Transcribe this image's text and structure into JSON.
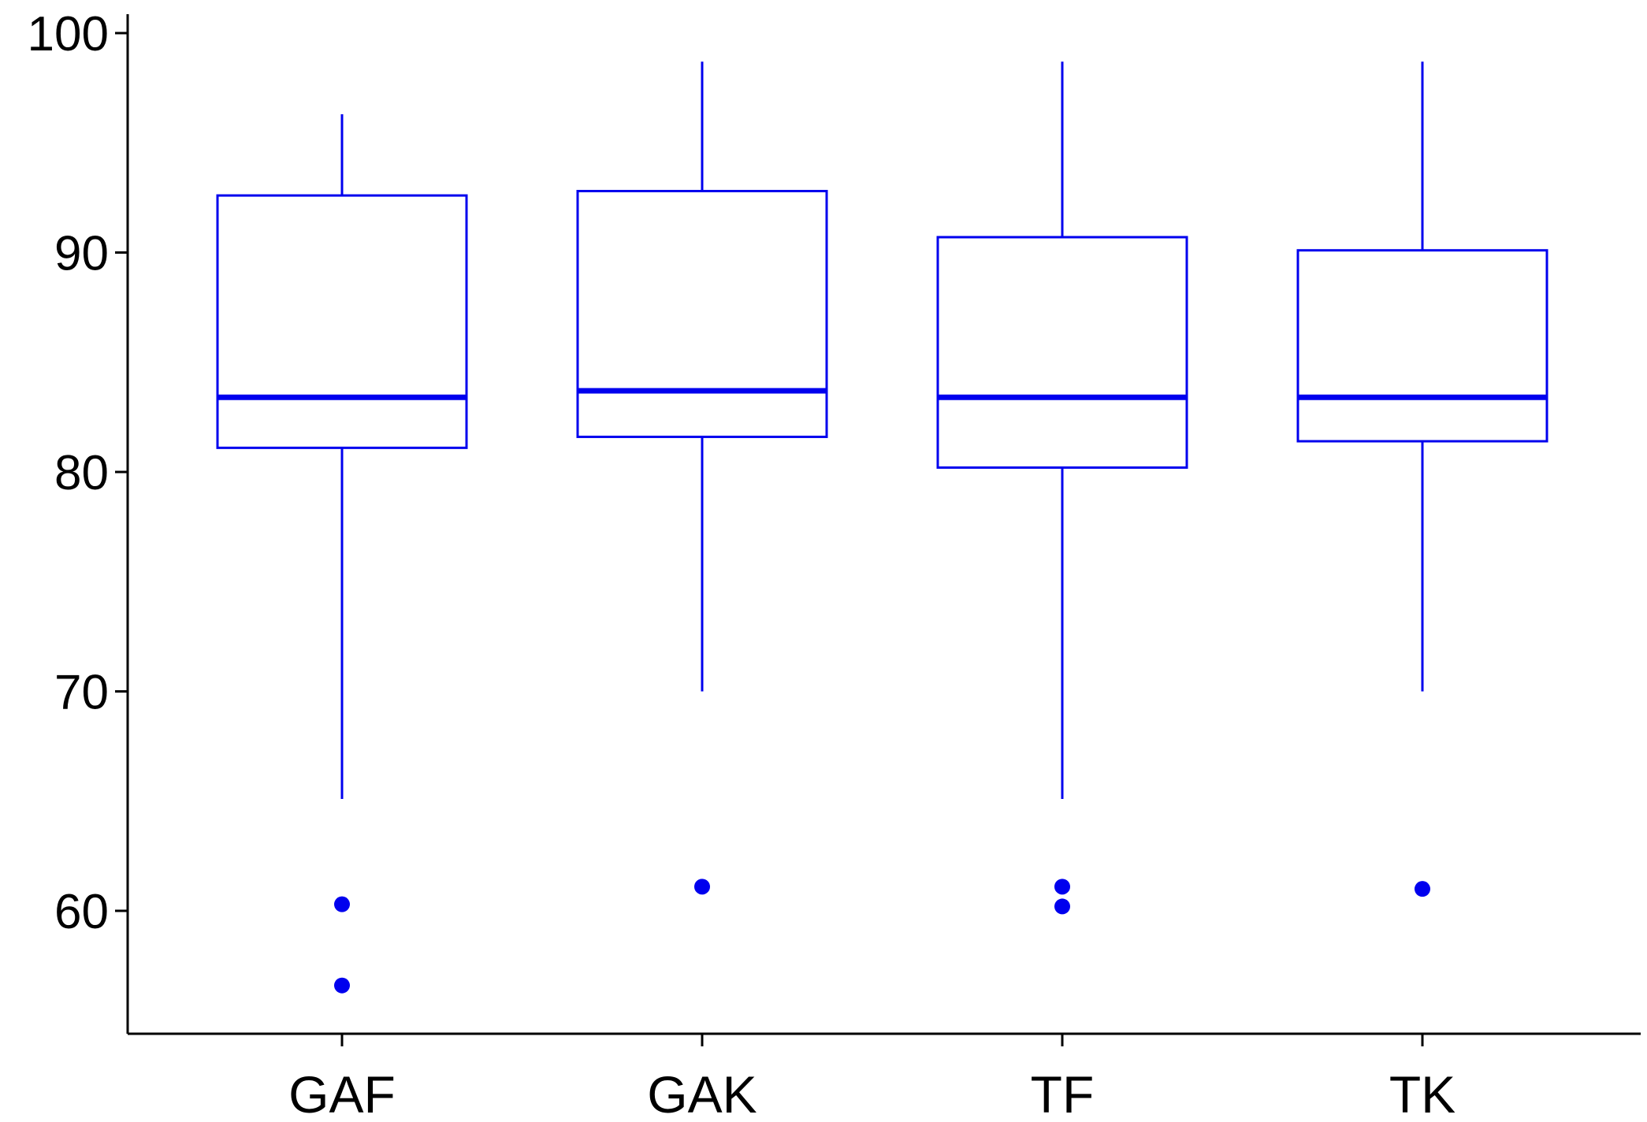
{
  "chart_data": {
    "type": "box",
    "title": "",
    "xlabel": "",
    "ylabel": "",
    "ylim": [
      54.5,
      101
    ],
    "yticks": [
      60,
      70,
      80,
      90,
      100
    ],
    "ytick_labels": [
      "60",
      "70",
      "80",
      "90",
      "100"
    ],
    "categories": [
      "GAF",
      "GAK",
      "TF",
      "TK"
    ],
    "grid": false,
    "legend": "none",
    "color": "#0000ee",
    "boxes": [
      {
        "category": "GAF",
        "whisker_low": 65.1,
        "q1": 81.1,
        "median": 83.4,
        "q3": 92.6,
        "whisker_high": 96.3,
        "outliers": [
          60.3,
          56.6
        ]
      },
      {
        "category": "GAK",
        "whisker_low": 70.0,
        "q1": 81.6,
        "median": 83.7,
        "q3": 92.8,
        "whisker_high": 98.7,
        "outliers": [
          61.1
        ]
      },
      {
        "category": "TF",
        "whisker_low": 65.1,
        "q1": 80.2,
        "median": 83.4,
        "q3": 90.7,
        "whisker_high": 98.7,
        "outliers": [
          61.1,
          60.2
        ]
      },
      {
        "category": "TK",
        "whisker_low": 70.0,
        "q1": 81.4,
        "median": 83.4,
        "q3": 90.1,
        "whisker_high": 98.7,
        "outliers": [
          61.0
        ]
      }
    ]
  }
}
